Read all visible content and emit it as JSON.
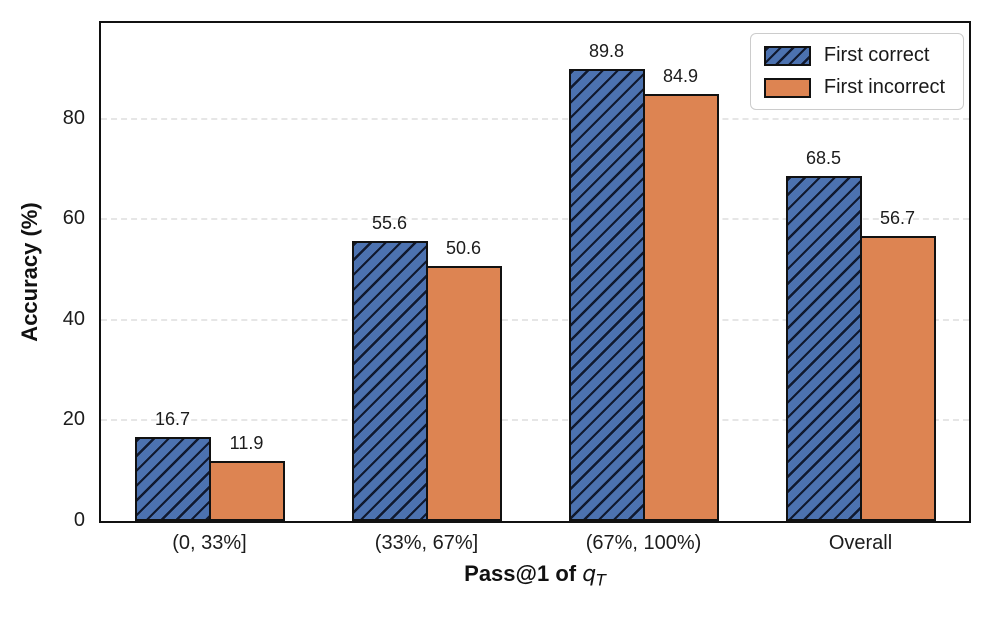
{
  "chart_data": {
    "type": "bar",
    "title": "",
    "categories": [
      "(0, 33%]",
      "(33%, 67%]",
      "(67%, 100%)",
      "Overall"
    ],
    "series": [
      {
        "name": "First correct",
        "values": [
          16.7,
          55.6,
          89.8,
          68.5
        ],
        "color": "#4C72B0",
        "hatch": "//"
      },
      {
        "name": "First incorrect",
        "values": [
          11.9,
          50.6,
          84.9,
          56.7
        ],
        "color": "#DD8452",
        "hatch": ""
      }
    ],
    "value_labels": {
      "first_correct": [
        "16.7",
        "55.6",
        "89.8",
        "68.5"
      ],
      "first_incorrect": [
        "11.9",
        "50.6",
        "84.9",
        "56.7"
      ]
    },
    "xlabel": "Pass@1 of q_T",
    "xlabel_prefix": "Pass@1 of ",
    "xlabel_var": "q",
    "xlabel_sub": "T",
    "ylabel": "Accuracy (%)",
    "ylim": [
      0,
      99
    ],
    "yticks": [
      0,
      20,
      40,
      60,
      80
    ],
    "grid": "horizontal-dashed",
    "grid_color": "#e6e6e6",
    "bar_edge_color": "#111111",
    "legend_position": "upper-right",
    "legend_border_color": "#cccccc"
  }
}
